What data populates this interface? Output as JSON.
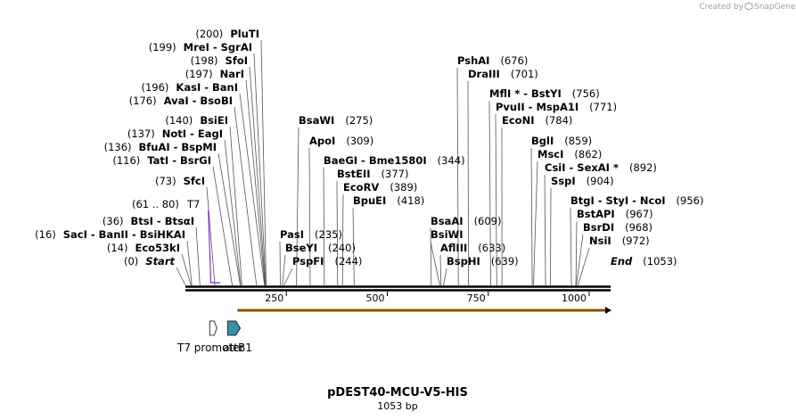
{
  "credit": {
    "prefix": "Created by",
    "brand": "SnapGene"
  },
  "map": {
    "title": "pDEST40-MCU-V5-HIS",
    "length_label": "1053 bp",
    "length": 1053,
    "ticks": [
      "250",
      "500",
      "750",
      "1000"
    ],
    "tick_values": [
      250,
      500,
      750,
      1000
    ]
  },
  "features": {
    "t7_label": "T7",
    "t7_range": "(61 .. 80)",
    "t7_color": "#8b2bd6",
    "t7_start": 61,
    "t7_end": 80,
    "t7_promoter": "T7 promoter",
    "t7_promoter_pos": 69,
    "attb1": "attB1",
    "attb1_pos": 116,
    "attb1_color": "#3b8fa8",
    "orf_color": "#f5a623",
    "orf_start": 129,
    "orf_end": 1053
  },
  "sites": [
    {
      "label": "Start",
      "pos": "(0)",
      "bp": 0,
      "italic": true
    },
    {
      "label": "Eco53kI",
      "pos": "(14)",
      "bp": 14
    },
    {
      "label": "SacI  -  BanII  -  BsiHKAI",
      "pos": "(16)",
      "bp": 16
    },
    {
      "label": "BtsI  -  BtsαI",
      "pos": "(36)",
      "bp": 36
    },
    {
      "label": "SfcI",
      "pos": "(73)",
      "bp": 73
    },
    {
      "label": "TatI  -  BsrGI",
      "pos": "(116)",
      "bp": 116
    },
    {
      "label": "BfuAI  -  BspMI",
      "pos": "(136)",
      "bp": 136
    },
    {
      "label": "NotI  -  EagI",
      "pos": "(137)",
      "bp": 137
    },
    {
      "label": "BsiEI",
      "pos": "(140)",
      "bp": 140
    },
    {
      "label": "AvaI  -  BsoBI",
      "pos": "(176)",
      "bp": 176
    },
    {
      "label": "KasI  -  BanI",
      "pos": "(196)",
      "bp": 196
    },
    {
      "label": "NarI",
      "pos": "(197)",
      "bp": 197
    },
    {
      "label": "SfoI",
      "pos": "(198)",
      "bp": 198
    },
    {
      "label": "MreI  -  SgrAI",
      "pos": "(199)",
      "bp": 199
    },
    {
      "label": "PluTI",
      "pos": "(200)",
      "bp": 200
    },
    {
      "label": "PasI",
      "pos": "(235)",
      "bp": 235
    },
    {
      "label": "BseYI",
      "pos": "(240)",
      "bp": 240
    },
    {
      "label": "PspFI",
      "pos": "(244)",
      "bp": 244
    },
    {
      "label": "BsaWI",
      "pos": "(275)",
      "bp": 275
    },
    {
      "label": "ApoI",
      "pos": "(309)",
      "bp": 309
    },
    {
      "label": "BaeGI  -  Bme1580I",
      "pos": "(344)",
      "bp": 344
    },
    {
      "label": "BstEII",
      "pos": "(377)",
      "bp": 377
    },
    {
      "label": "EcoRV",
      "pos": "(389)",
      "bp": 389
    },
    {
      "label": "BpuEI",
      "pos": "(418)",
      "bp": 418
    },
    {
      "label": "BsaAI",
      "pos": "(609)",
      "bp": 609
    },
    {
      "label": "BsiWI",
      "pos": "",
      "bp": 630
    },
    {
      "label": "AflIII",
      "pos": "(633)",
      "bp": 633
    },
    {
      "label": "BspHI",
      "pos": "(639)",
      "bp": 639
    },
    {
      "label": "PshAI",
      "pos": "(676)",
      "bp": 676
    },
    {
      "label": "DraIII",
      "pos": "(701)",
      "bp": 701
    },
    {
      "label": "MflI *  -  BstYI",
      "pos": "(756)",
      "bp": 756
    },
    {
      "label": "PvuII  -  MspA1I",
      "pos": "(771)",
      "bp": 771
    },
    {
      "label": "EcoNI",
      "pos": "(784)",
      "bp": 784
    },
    {
      "label": "BglI",
      "pos": "(859)",
      "bp": 859
    },
    {
      "label": "MscI",
      "pos": "(862)",
      "bp": 862
    },
    {
      "label": "CsiI  -  SexAI *",
      "pos": "(892)",
      "bp": 892
    },
    {
      "label": "SspI",
      "pos": "(904)",
      "bp": 904
    },
    {
      "label": "BtgI  -  StyI  -  NcoI",
      "pos": "(956)",
      "bp": 956
    },
    {
      "label": "BstAPI",
      "pos": "(967)",
      "bp": 967
    },
    {
      "label": "BsrDI",
      "pos": "(968)",
      "bp": 968
    },
    {
      "label": "NsiI",
      "pos": "(972)",
      "bp": 972
    },
    {
      "label": "End",
      "pos": "(1053)",
      "bp": 1053,
      "italic": true
    }
  ]
}
